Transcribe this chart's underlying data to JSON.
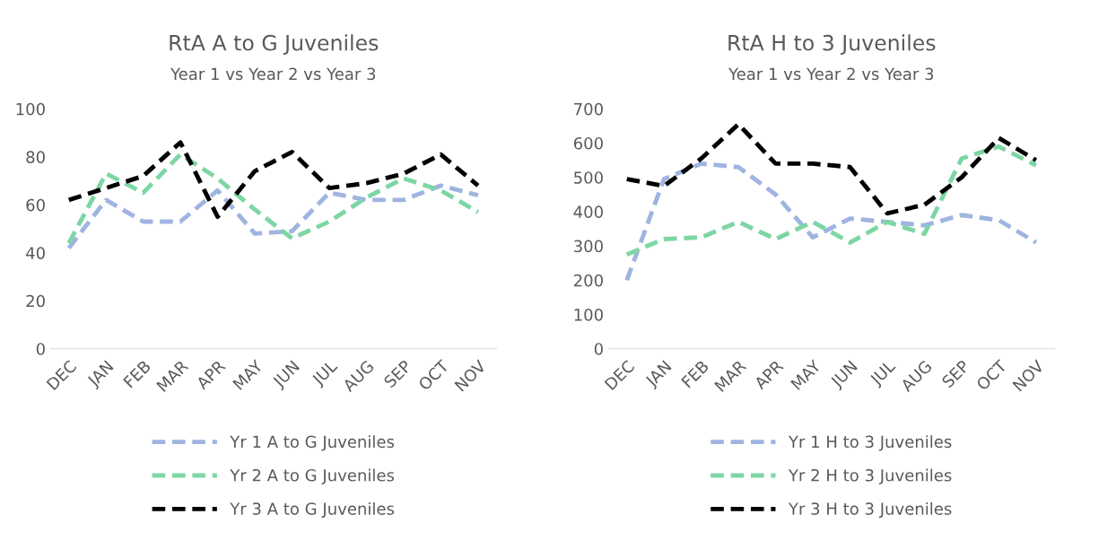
{
  "chart_data": [
    {
      "type": "line",
      "title": "RtA A to G Juveniles",
      "subtitle": "Year 1 vs Year 2 vs Year 3",
      "categories": [
        "DEC",
        "JAN",
        "FEB",
        "MAR",
        "APR",
        "MAY",
        "JUN",
        "JUL",
        "AUG",
        "SEP",
        "OCT",
        "NOV"
      ],
      "series": [
        {
          "name": "Yr 1 A to G Juveniles",
          "color": "#9fb4e0",
          "values": [
            42,
            62,
            53,
            53,
            66,
            48,
            49,
            65,
            62,
            62,
            68,
            64
          ]
        },
        {
          "name": "Yr 2 A to G Juveniles",
          "color": "#7dd6a4",
          "values": [
            44,
            73,
            65,
            81,
            71,
            58,
            46,
            53,
            63,
            71,
            66,
            57
          ]
        },
        {
          "name": "Yr 3 A to G Juveniles",
          "color": "#000000",
          "values": [
            62,
            67,
            72,
            86,
            55,
            74,
            82,
            67,
            69,
            73,
            81,
            68
          ]
        }
      ],
      "ylim": [
        0,
        100
      ],
      "yticks": [
        0,
        20,
        40,
        60,
        80,
        100
      ],
      "grid": false,
      "legend": "bottom",
      "marker": "none",
      "line_style": "dashed"
    },
    {
      "type": "line",
      "title": "RtA H to 3 Juveniles",
      "subtitle": "Year 1 vs Year 2 vs Year 3",
      "categories": [
        "DEC",
        "JAN",
        "FEB",
        "MAR",
        "APR",
        "MAY",
        "JUN",
        "JUL",
        "AUG",
        "SEP",
        "OCT",
        "NOV"
      ],
      "series": [
        {
          "name": "Yr 1 H to 3 Juveniles",
          "color": "#9fb4e0",
          "values": [
            200,
            495,
            540,
            530,
            450,
            325,
            380,
            370,
            360,
            390,
            375,
            310
          ]
        },
        {
          "name": "Yr 2 H to 3 Juveniles",
          "color": "#7dd6a4",
          "values": [
            275,
            320,
            325,
            370,
            320,
            370,
            310,
            370,
            335,
            555,
            590,
            535
          ]
        },
        {
          "name": "Yr 3 H to 3 Juveniles",
          "color": "#000000",
          "values": [
            495,
            475,
            555,
            655,
            540,
            540,
            530,
            395,
            420,
            500,
            615,
            550
          ]
        }
      ],
      "ylim": [
        0,
        700
      ],
      "yticks": [
        0,
        100,
        200,
        300,
        400,
        500,
        600,
        700
      ],
      "grid": false,
      "legend": "bottom",
      "marker": "none",
      "line_style": "dashed"
    }
  ]
}
